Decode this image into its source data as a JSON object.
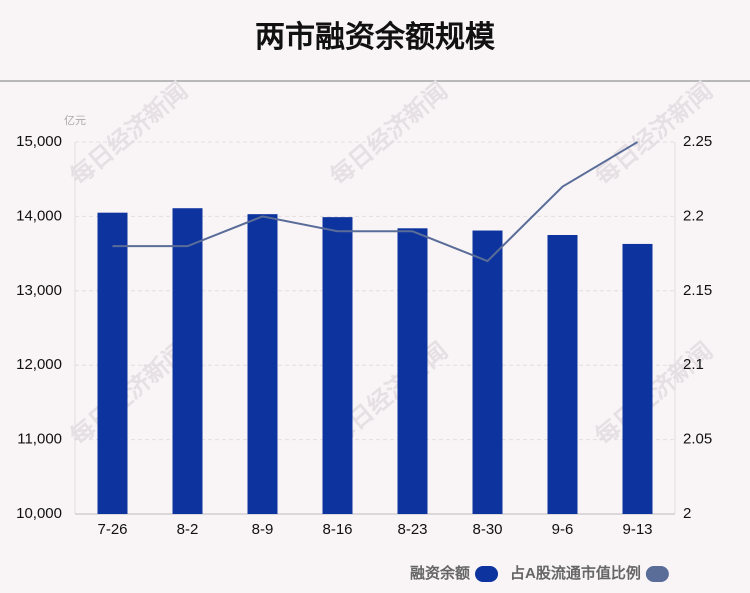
{
  "chart_data": {
    "type": "bar",
    "title": "两市融资余额规模",
    "y_unit": "亿元",
    "watermark": "每日经济新闻",
    "categories": [
      "7-26",
      "8-2",
      "8-9",
      "8-16",
      "8-23",
      "8-30",
      "9-6",
      "9-13"
    ],
    "series": [
      {
        "name": "融资余额",
        "color": "#0d339e",
        "values": [
          14050,
          14110,
          14030,
          13990,
          13840,
          13810,
          13750,
          13630
        ]
      },
      {
        "name": "占A股流通市值比例",
        "color": "#5a6c98",
        "type": "line",
        "axis": "y2",
        "values": [
          2.18,
          2.18,
          2.2,
          2.19,
          2.19,
          2.17,
          2.22,
          2.25
        ]
      }
    ],
    "ylim": [
      10000,
      15000
    ],
    "yticks": [
      {
        "value": 10000,
        "label": "10,000"
      },
      {
        "value": 11000,
        "label": "11,000"
      },
      {
        "value": 12000,
        "label": "12,000"
      },
      {
        "value": 13000,
        "label": "13,000"
      },
      {
        "value": 14000,
        "label": "14,000"
      },
      {
        "value": 15000,
        "label": "15,000"
      }
    ],
    "y2lim": [
      2,
      2.25
    ],
    "y2ticks": [
      2,
      2.05,
      2.1,
      2.15,
      2.2,
      2.25
    ],
    "grid": true,
    "legend": "bottom"
  }
}
